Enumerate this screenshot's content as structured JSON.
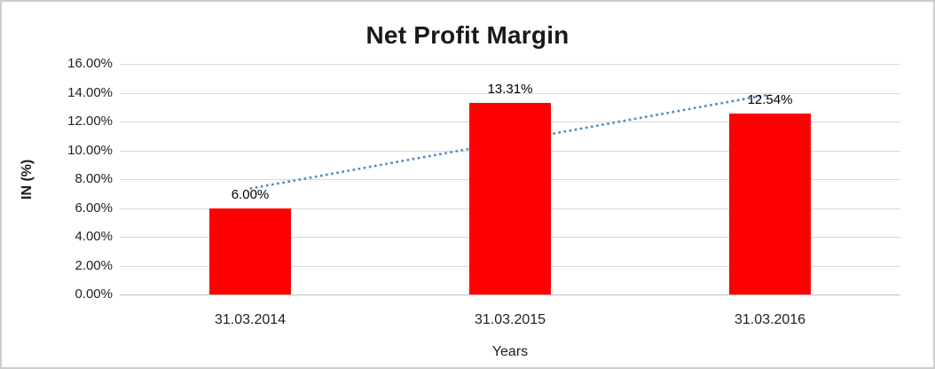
{
  "chart_data": {
    "type": "bar",
    "title": "Net Profit Margin",
    "xlabel": "Years",
    "ylabel": "IN (%)",
    "categories": [
      "31.03.2014",
      "31.03.2015",
      "31.03.2016"
    ],
    "values": [
      6.0,
      13.31,
      12.54
    ],
    "value_labels": [
      "6.00%",
      "13.31%",
      "12.54%"
    ],
    "ylim": [
      0,
      16
    ],
    "ytick_labels": [
      "0.00%",
      "2.00%",
      "4.00%",
      "6.00%",
      "8.00%",
      "10.00%",
      "12.00%",
      "14.00%",
      "16.00%"
    ],
    "grid": true,
    "legend": "none",
    "bar_color": "#ff0000",
    "trendline": {
      "type": "linear",
      "style": "dotted",
      "color": "#4e87c6"
    }
  }
}
